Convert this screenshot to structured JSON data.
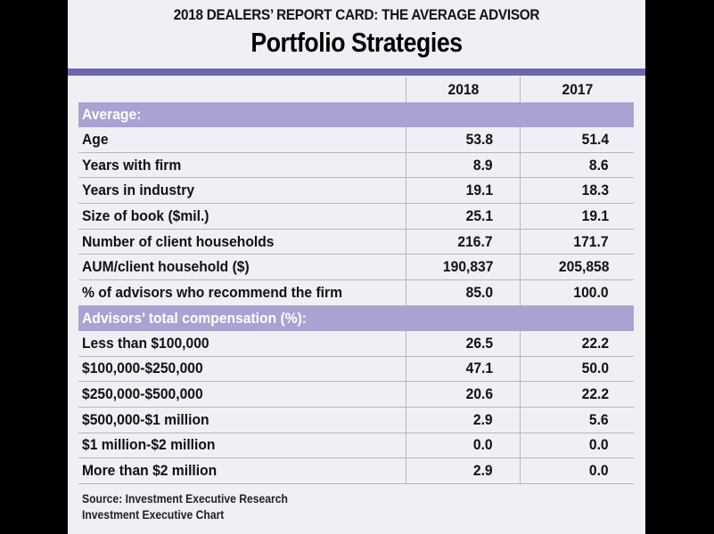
{
  "supertitle": "2018 DEALERS’ REPORT CARD: THE AVERAGE ADVISOR",
  "title": "Portfolio Strategies",
  "colors": {
    "rule": "#6e66b0",
    "band": "#a9a2d2",
    "panel": "#eff0f6"
  },
  "chart_data": {
    "type": "table",
    "title": "Portfolio Strategies",
    "subtitle": "2018 DEALERS’ REPORT CARD: THE AVERAGE ADVISOR",
    "columns": [
      "",
      "2018",
      "2017"
    ],
    "sections": [
      {
        "heading": "Average:",
        "rows": [
          {
            "label": "Age",
            "v2018": "53.8",
            "v2017": "51.4"
          },
          {
            "label": "Years with firm",
            "v2018": "8.9",
            "v2017": "8.6"
          },
          {
            "label": "Years in industry",
            "v2018": "19.1",
            "v2017": "18.3"
          },
          {
            "label": "Size of book ($mil.)",
            "v2018": "25.1",
            "v2017": "19.1"
          },
          {
            "label": "Number of client households",
            "v2018": "216.7",
            "v2017": "171.7"
          },
          {
            "label": "AUM/client household ($)",
            "v2018": "190,837",
            "v2017": "205,858"
          },
          {
            "label": "% of advisors who recommend the firm",
            "v2018": "85.0",
            "v2017": "100.0"
          }
        ]
      },
      {
        "heading": "Advisors’ total compensation (%):",
        "rows": [
          {
            "label": "Less than $100,000",
            "v2018": "26.5",
            "v2017": "22.2"
          },
          {
            "label": "$100,000-$250,000",
            "v2018": "47.1",
            "v2017": "50.0"
          },
          {
            "label": "$250,000-$500,000",
            "v2018": "20.6",
            "v2017": "22.2"
          },
          {
            "label": "$500,000-$1 million",
            "v2018": "2.9",
            "v2017": "5.6"
          },
          {
            "label": "$1 million-$2 million",
            "v2018": "0.0",
            "v2017": "0.0"
          },
          {
            "label": "More than $2 million",
            "v2018": "2.9",
            "v2017": "0.0"
          }
        ]
      }
    ]
  },
  "footer": {
    "source": "Source: Investment Executive Research",
    "credit": "Investment Executive Chart"
  }
}
